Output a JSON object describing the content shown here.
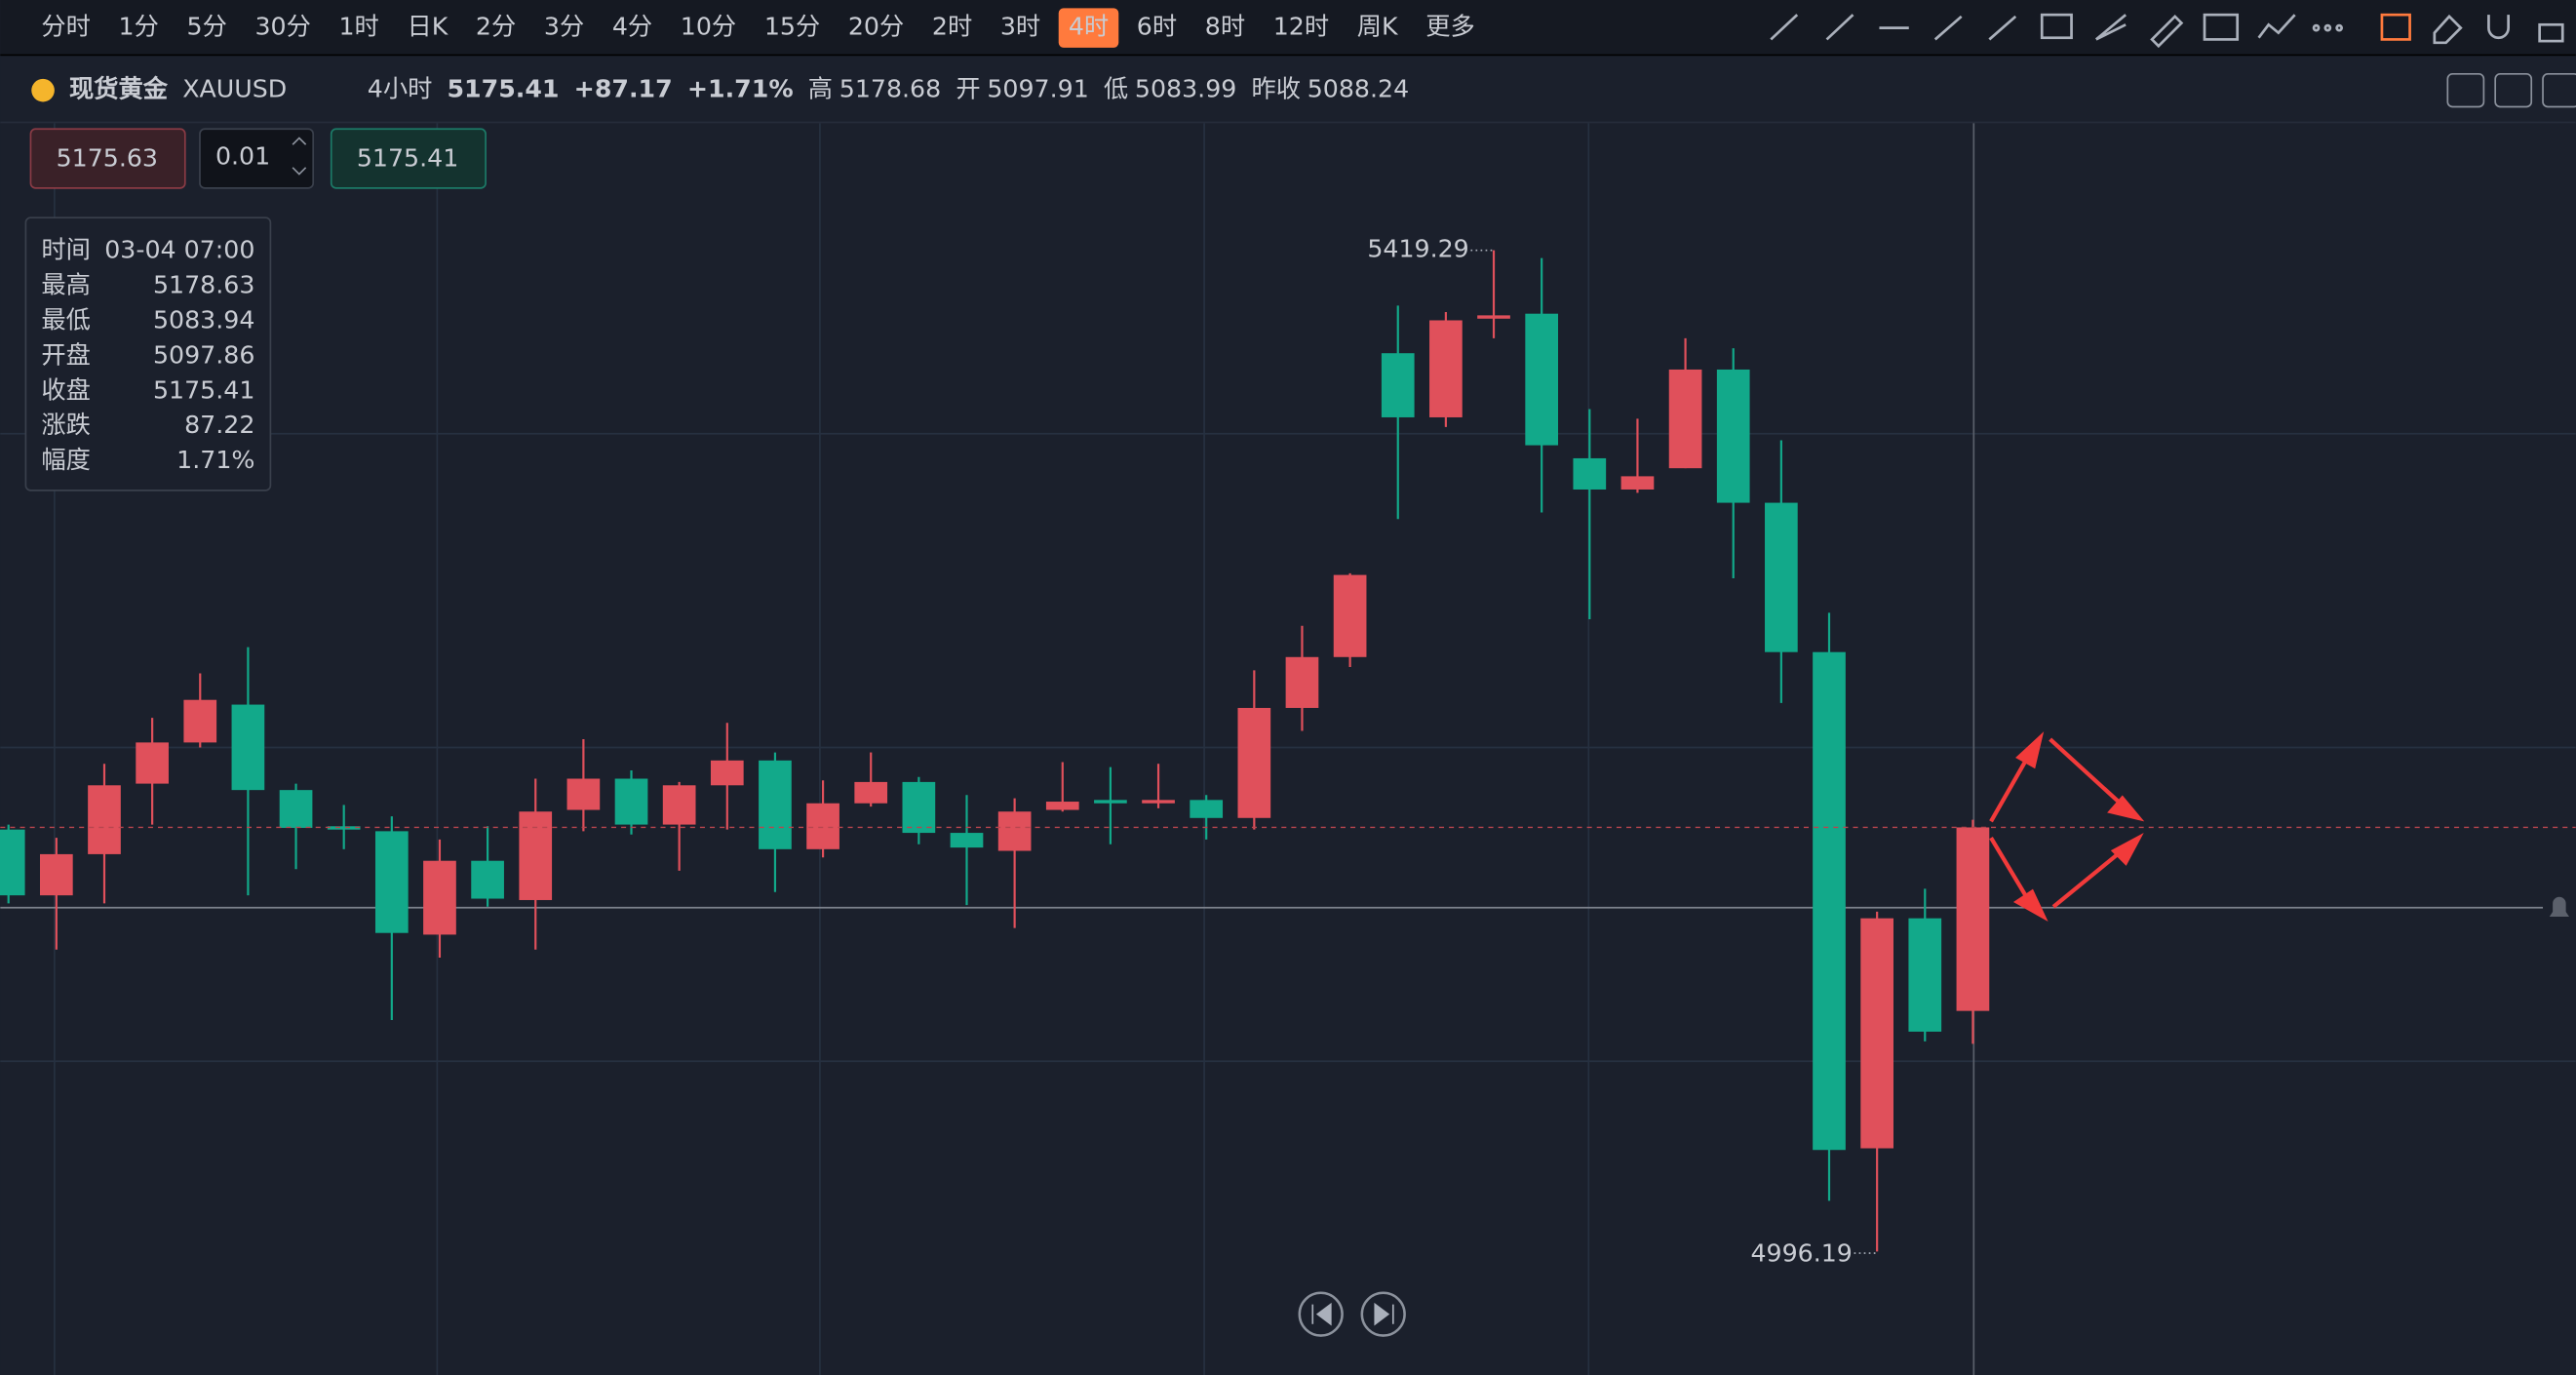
{
  "toolbar": {
    "timeframes": [
      "分时",
      "1分",
      "5分",
      "30分",
      "1时",
      "日K",
      "2分",
      "3分",
      "4分",
      "10分",
      "15分",
      "20分",
      "2时",
      "3时",
      "4时",
      "6时",
      "8时",
      "12时",
      "周K",
      "更多"
    ],
    "active": 14
  },
  "header": {
    "name": "现货黄金",
    "symbol": "XAUUSD",
    "period": "4小时",
    "price": "5175.41",
    "change": "+87.17",
    "change_pct": "+1.71%",
    "high_label": "高",
    "high": "5178.68",
    "open_label": "开",
    "open": "5097.91",
    "low_label": "低",
    "low": "5083.99",
    "prev_label": "昨收",
    "prev": "5088.24"
  },
  "order": {
    "sell": "5175.63",
    "qty": "0.01",
    "buy": "5175.41"
  },
  "tooltip": {
    "time_label": "时间",
    "time": "03-04 07:00",
    "high_label": "最高",
    "low_label": "最低",
    "open_label": "开盘",
    "close_label": "收盘",
    "change_label": "涨跌",
    "change": "87.22",
    "pct_label": "幅度",
    "pct": "1.71%"
  },
  "chart_data": {
    "type": "candlestick",
    "up_color": "#e0505b",
    "down_color": "#12a98a",
    "ylim": [
      4944,
      5473
    ],
    "open": [
      5174.5,
      5146.7,
      5164.1,
      5193.9,
      5211.3,
      5227.3,
      5191.2,
      5175.9,
      5173.8,
      5130.1,
      5161.3,
      5144.7,
      5182.8,
      5196.0,
      5176.6,
      5193.2,
      5203.7,
      5166.2,
      5185.6,
      5194.6,
      5173.1,
      5165.5,
      5182.8,
      5187.0,
      5185.6,
      5187.0,
      5179.4,
      5225.9,
      5247.4,
      5375.8,
      5348.7,
      5390.4,
      5392.5,
      5331.4,
      5318.2,
      5327.2,
      5368.9,
      5312.6,
      5249.5,
      5039.8,
      5137.0,
      5097.86
    ],
    "high": [
      5176.6,
      5171.0,
      5202.3,
      5221.7,
      5240.5,
      5251.6,
      5193.9,
      5184.9,
      5180.1,
      5170.3,
      5175.9,
      5196.0,
      5212.7,
      5199.5,
      5194.6,
      5219.6,
      5207.1,
      5195.3,
      5207.1,
      5196.7,
      5189.1,
      5187.7,
      5203.0,
      5200.9,
      5202.3,
      5189.1,
      5241.8,
      5260.6,
      5282.8,
      5395.9,
      5393.2,
      5419.29,
      5416.0,
      5352.2,
      5348.1,
      5382.1,
      5377.9,
      5339.0,
      5266.1,
      5139.8,
      5149.5,
      5178.63
    ],
    "low": [
      5143.3,
      5123.8,
      5143.3,
      5176.6,
      5209.2,
      5146.7,
      5157.8,
      5166.2,
      5094.0,
      5120.4,
      5141.9,
      5123.8,
      5173.8,
      5172.4,
      5157.1,
      5174.5,
      5148.1,
      5162.7,
      5184.2,
      5168.3,
      5142.6,
      5132.9,
      5182.1,
      5168.3,
      5183.5,
      5170.3,
      5174.5,
      5216.2,
      5243.2,
      5305.7,
      5344.6,
      5382.1,
      5308.5,
      5263.4,
      5316.8,
      5327.2,
      5280.7,
      5228.0,
      5017.6,
      4996.19,
      5085.0,
      5083.94
    ],
    "close": [
      5146.7,
      5164.1,
      5193.2,
      5211.3,
      5229.3,
      5191.2,
      5175.2,
      5174.5,
      5130.8,
      5161.3,
      5145.3,
      5182.1,
      5196.0,
      5176.6,
      5193.2,
      5203.7,
      5166.2,
      5185.6,
      5194.6,
      5173.1,
      5166.9,
      5182.1,
      5186.3,
      5185.6,
      5187.0,
      5179.4,
      5225.9,
      5247.4,
      5282.1,
      5348.7,
      5389.7,
      5391.8,
      5336.9,
      5318.2,
      5323.8,
      5368.9,
      5312.6,
      5249.5,
      5039.1,
      5137.0,
      5089.1,
      5175.41
    ]
  }
}
